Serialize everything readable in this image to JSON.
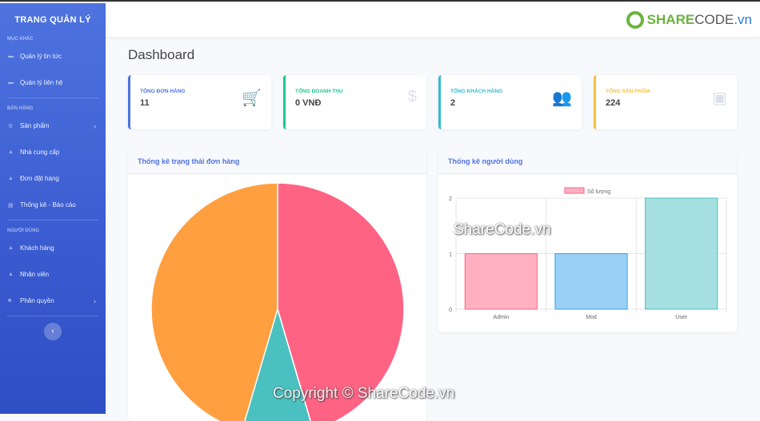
{
  "sidebar": {
    "brand": "TRANG QUẢN LÝ",
    "sections": [
      {
        "title": "Mục khác",
        "items": [
          {
            "label": "Quản lý tin tức",
            "icon": "newspaper-icon"
          },
          {
            "label": "Quản lý liên hệ",
            "icon": "newspaper-icon"
          }
        ]
      },
      {
        "title": "Bán hàng",
        "items": [
          {
            "label": "Sản phẩm",
            "icon": "gear-icon"
          },
          {
            "label": "Nhà cung cấp",
            "icon": "chart-area-icon"
          },
          {
            "label": "Đơn đặt hàng",
            "icon": "chart-area-icon"
          },
          {
            "label": "Thống kê - Báo cáo",
            "icon": "table-icon"
          }
        ]
      },
      {
        "title": "Người dùng",
        "items": [
          {
            "label": "Khách hàng",
            "icon": "chart-area-icon"
          },
          {
            "label": "Nhân viên",
            "icon": "chart-area-icon"
          },
          {
            "label": "Phân quyền",
            "icon": "folder-icon"
          }
        ]
      }
    ],
    "toggle": "‹"
  },
  "header": {
    "logo_a": "SHARE",
    "logo_b": "CODE",
    "logo_c": ".vn"
  },
  "page_title": "Dashboard",
  "cards": [
    {
      "label": "Tổng đơn hàng",
      "value": "11",
      "color": "#4e73df",
      "icon": "cart-icon",
      "glyph": "🛒"
    },
    {
      "label": "Tổng doanh thu",
      "value": "0 VNĐ",
      "color": "#1cc88a",
      "icon": "dollar-icon",
      "glyph": "$"
    },
    {
      "label": "Tổng khách hàng",
      "value": "2",
      "color": "#36b9cc",
      "icon": "users-icon",
      "glyph": "👥"
    },
    {
      "label": "Tổng sản phẩm",
      "value": "224",
      "color": "#f6c23e",
      "icon": "box-icon",
      "glyph": "▣"
    }
  ],
  "chart_data": [
    {
      "type": "pie",
      "title": "Thống kê trạng thái đơn hàng",
      "values": [
        5,
        1,
        5
      ],
      "colors": [
        "#ff6384",
        "#4bc0c0",
        "#ff9f40"
      ]
    },
    {
      "type": "bar",
      "title": "Thống kê người dùng",
      "categories": [
        "Admin",
        "Mod",
        "User"
      ],
      "series": [
        {
          "name": "Số lượng",
          "values": [
            1,
            1,
            2
          ]
        }
      ],
      "ylim": [
        0,
        2
      ],
      "yticks": [
        "0",
        "1",
        "2"
      ],
      "colors": [
        "#ffb1c1",
        "#9ad0f5",
        "#a5dfdf"
      ],
      "borders": [
        "#ff6384",
        "#36a2eb",
        "#4bc0c0"
      ],
      "grid": true,
      "legend": "top"
    }
  ],
  "watermarks": {
    "center": "ShareCode.vn",
    "bottom": "Copyright © ShareCode.vn"
  }
}
